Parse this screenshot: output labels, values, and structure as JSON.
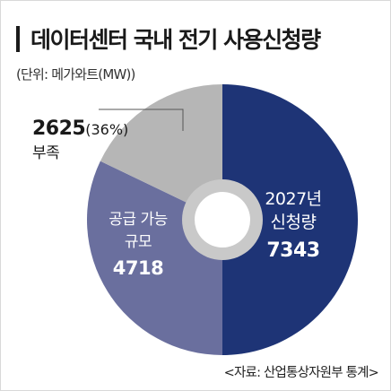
{
  "header": {
    "title": "데이터센터 국내 전기 사용신청량",
    "unit": "(단위: 메가와트(MW))"
  },
  "source": "<자료: 산업통상자원부 통계>",
  "colors": {
    "navy": "#1e3476",
    "slate": "#6a6f9e",
    "gray": "#b6b6b6",
    "donut_gap": "#c9c9c9"
  },
  "chart_data": {
    "type": "pie",
    "title": "데이터센터 국내 전기 사용신청량",
    "unit": "MW",
    "donut": true,
    "slices": [
      {
        "name": "2027년 신청량",
        "value": 7343,
        "color": "#1e3476",
        "label_lines": [
          "2027년",
          "신청량"
        ],
        "value_text": "7343"
      },
      {
        "name": "공급 가능 규모",
        "value": 4718,
        "color": "#6a6f9e",
        "label_lines": [
          "공급 가능",
          "규모"
        ],
        "value_text": "4718"
      },
      {
        "name": "부족",
        "value": 2625,
        "color": "#b6b6b6",
        "label_lines": [
          "부족"
        ],
        "value_text": "2625",
        "percent_text": "(36%)"
      }
    ]
  }
}
